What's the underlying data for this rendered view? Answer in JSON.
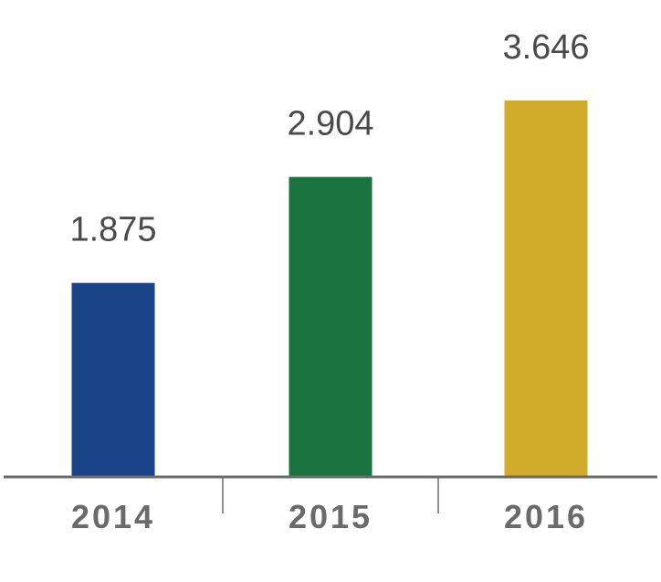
{
  "chart_data": {
    "type": "bar",
    "categories": [
      "2014",
      "2015",
      "2016"
    ],
    "values": [
      1.875,
      2.904,
      3.646
    ],
    "value_labels": [
      "1.875",
      "2.904",
      "3.646"
    ],
    "colors": [
      "#1b4488",
      "#1b7440",
      "#d1ab2a"
    ],
    "axis_color": "#6b6b6b",
    "title": "",
    "xlabel": "",
    "ylabel": "",
    "ylim": [
      0,
      3.75
    ],
    "grid": false,
    "legend": "none"
  }
}
